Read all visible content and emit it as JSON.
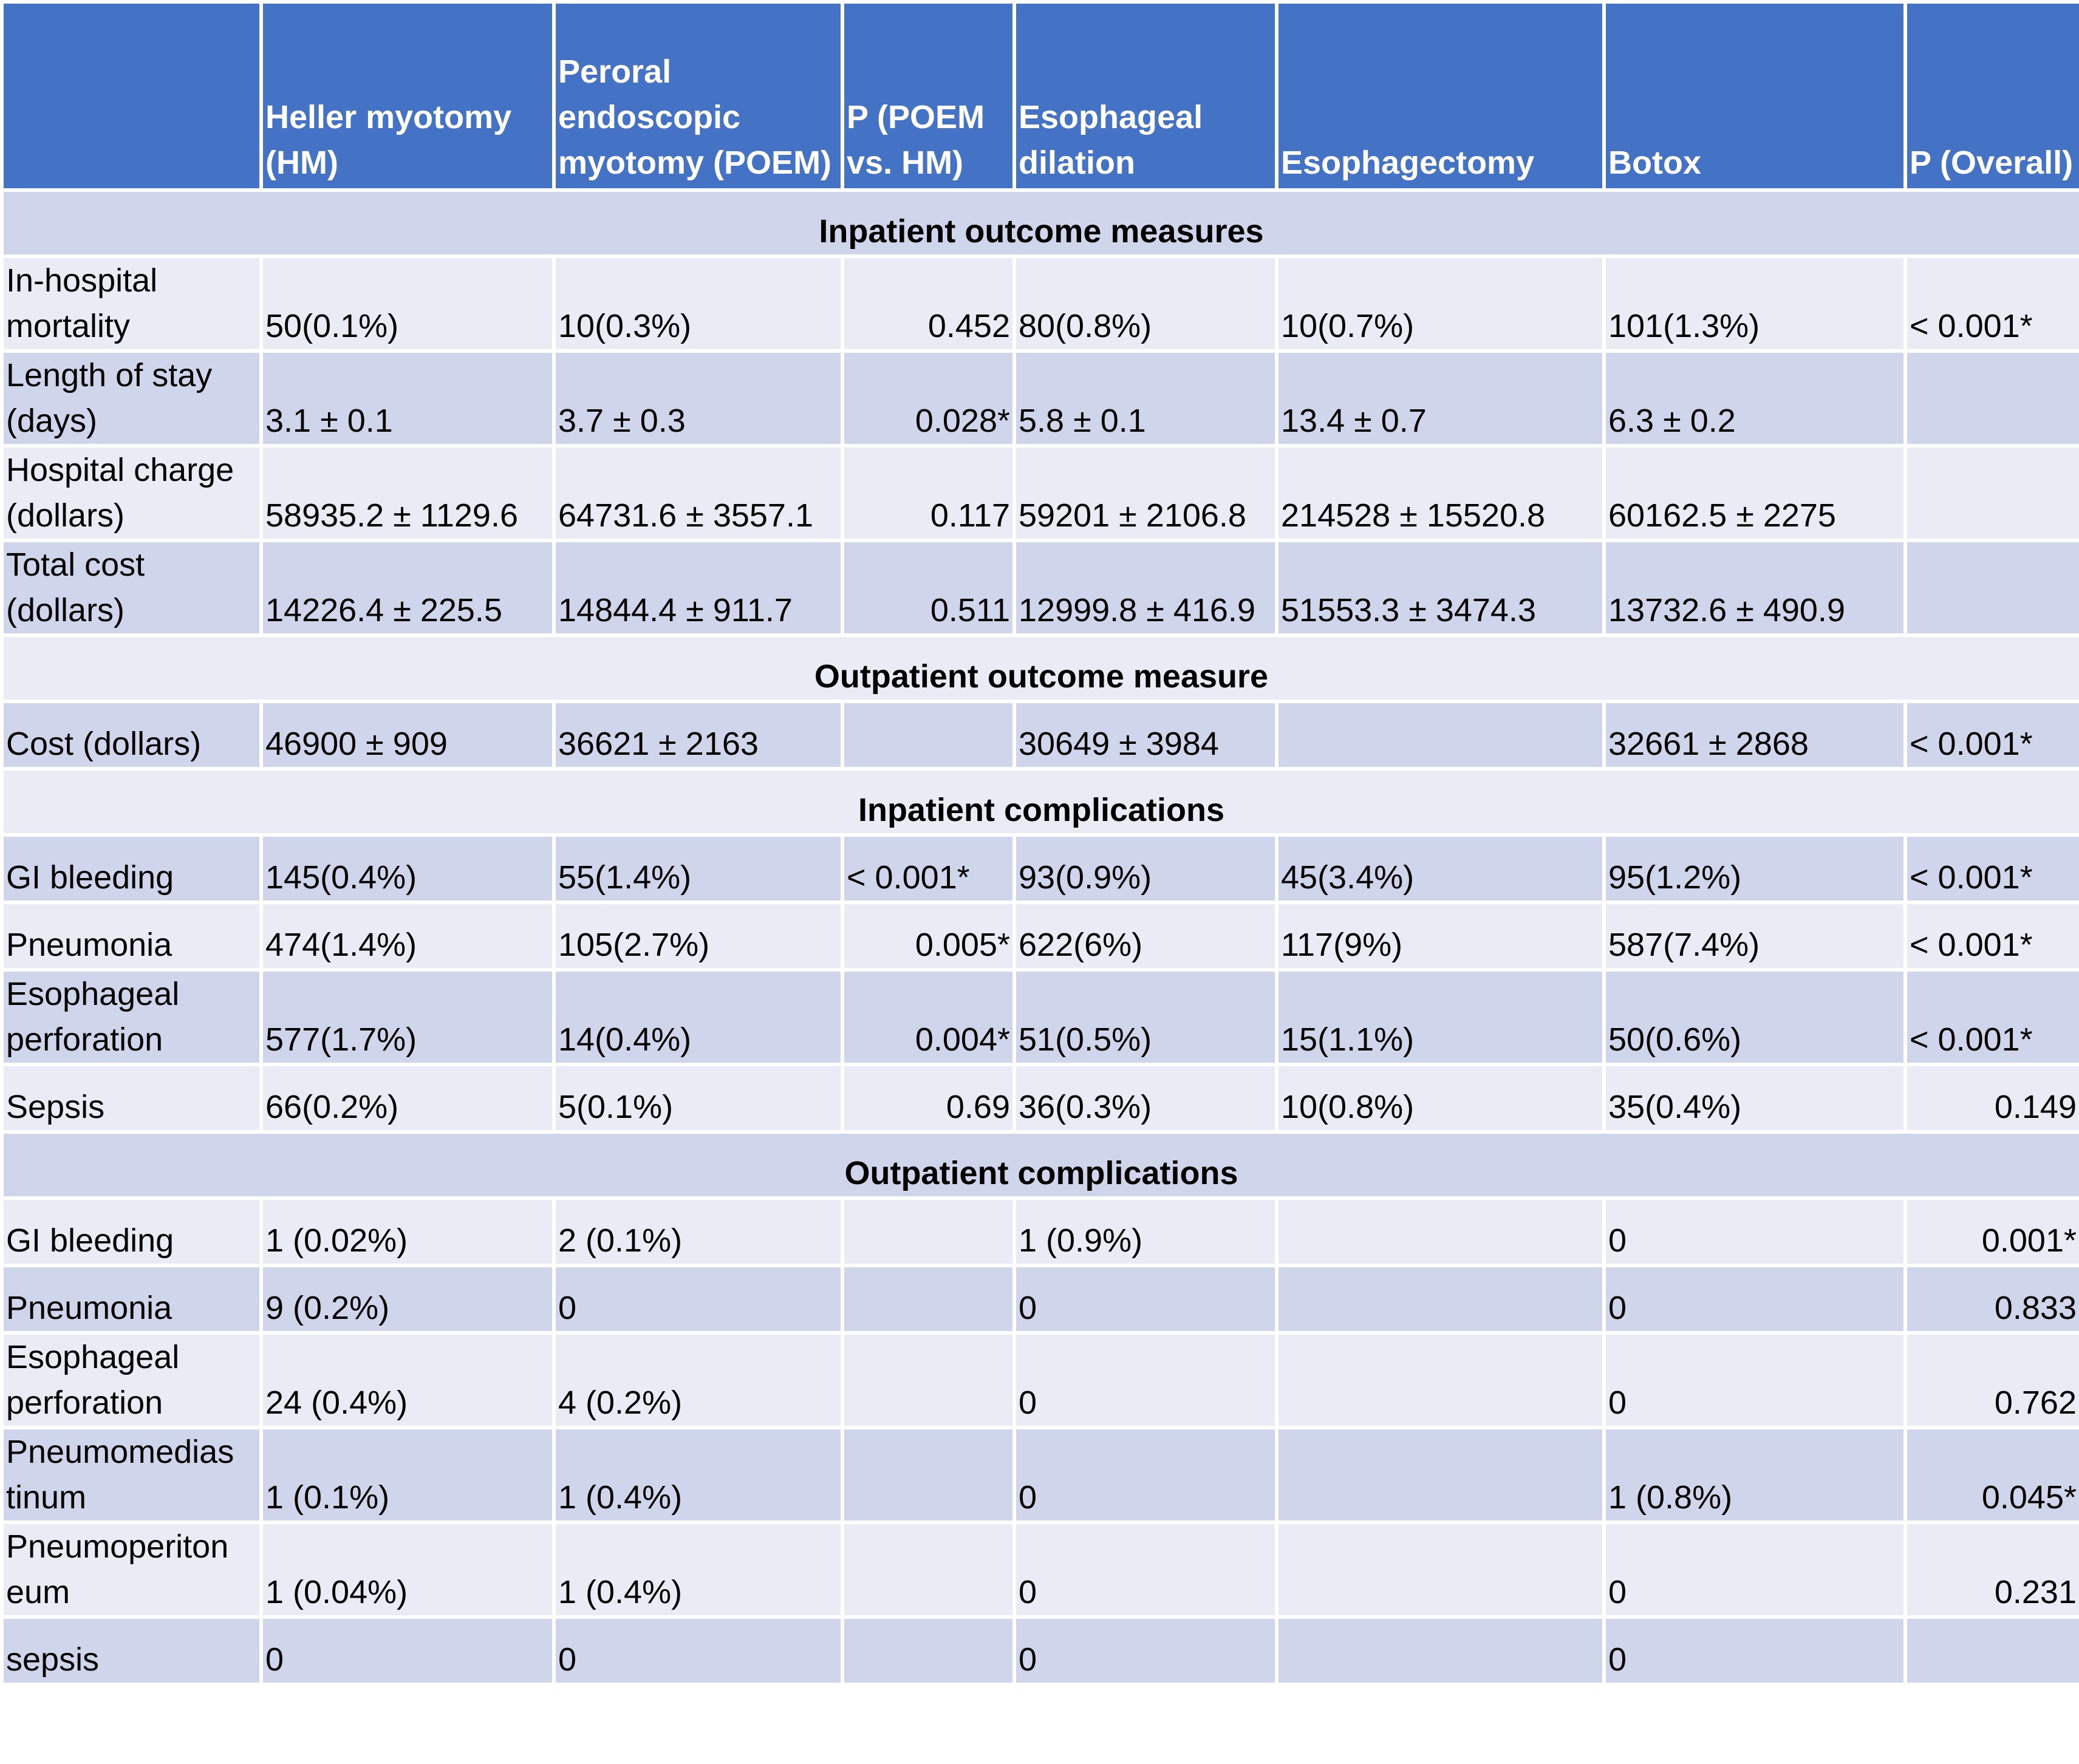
{
  "columns": [
    "",
    "Heller myotomy (HM)",
    "Peroral endoscopic myotomy (POEM)",
    "P (POEM vs. HM)",
    "Esophageal dilation",
    "Esophagectomy",
    "Botox",
    "P (Overall)"
  ],
  "sections": [
    {
      "title": "Inpatient outcome measures",
      "rows": [
        {
          "label": "In-hospital mortality",
          "cells": [
            "50(0.1%)",
            "10(0.3%)",
            "0.452",
            "80(0.8%)",
            "10(0.7%)",
            "101(1.3%)",
            "< 0.001*"
          ]
        },
        {
          "label": "Length of stay (days)",
          "cells": [
            "3.1 ± 0.1",
            "3.7 ± 0.3",
            "0.028*",
            "5.8 ± 0.1",
            "13.4 ± 0.7",
            "6.3 ± 0.2",
            ""
          ]
        },
        {
          "label": "Hospital charge (dollars)",
          "cells": [
            "58935.2 ± 1129.6",
            "64731.6 ± 3557.1",
            "0.117",
            "59201 ± 2106.8",
            "214528 ± 15520.8",
            "60162.5 ± 2275",
            ""
          ]
        },
        {
          "label": "Total cost (dollars)",
          "cells": [
            "14226.4 ± 225.5",
            "14844.4 ± 911.7",
            "0.511",
            "12999.8 ± 416.9",
            "51553.3 ± 3474.3",
            "13732.6 ± 490.9",
            ""
          ]
        }
      ]
    },
    {
      "title": "Outpatient outcome measure",
      "rows": [
        {
          "label": "Cost (dollars)",
          "cells": [
            "46900 ± 909",
            "36621 ± 2163",
            "",
            "30649 ± 3984",
            "",
            "32661 ± 2868",
            "< 0.001*"
          ]
        }
      ]
    },
    {
      "title": "Inpatient complications",
      "rows": [
        {
          "label": "GI bleeding",
          "cells": [
            "145(0.4%)",
            "55(1.4%)",
            "< 0.001*",
            "93(0.9%)",
            "45(3.4%)",
            "95(1.2%)",
            "< 0.001*"
          ]
        },
        {
          "label": "Pneumonia",
          "cells": [
            "474(1.4%)",
            "105(2.7%)",
            "0.005*",
            "622(6%)",
            "117(9%)",
            "587(7.4%)",
            "< 0.001*"
          ]
        },
        {
          "label": "Esophageal perforation",
          "cells": [
            "577(1.7%)",
            "14(0.4%)",
            "0.004*",
            "51(0.5%)",
            "15(1.1%)",
            "50(0.6%)",
            "< 0.001*"
          ]
        },
        {
          "label": "Sepsis",
          "cells": [
            "66(0.2%)",
            "5(0.1%)",
            "0.69",
            "36(0.3%)",
            "10(0.8%)",
            "35(0.4%)",
            "0.149"
          ]
        }
      ]
    },
    {
      "title": "Outpatient complications",
      "rows": [
        {
          "label": "GI bleeding",
          "cells": [
            "1 (0.02%)",
            "2 (0.1%)",
            "",
            "1 (0.9%)",
            "",
            "0",
            "0.001*"
          ]
        },
        {
          "label": "Pneumonia",
          "cells": [
            "9 (0.2%)",
            "0",
            "",
            "0",
            "",
            "0",
            "0.833"
          ]
        },
        {
          "label": "Esophageal perforation",
          "cells": [
            "24 (0.4%)",
            "4 (0.2%)",
            "",
            "0",
            "",
            "0",
            "0.762"
          ]
        },
        {
          "label": "Pneumomedias tinum",
          "cells": [
            "1 (0.1%)",
            "1 (0.4%)",
            "",
            "0",
            "",
            "1 (0.8%)",
            "0.045*"
          ]
        },
        {
          "label": "Pneumoperiton eum",
          "cells": [
            "1 (0.04%)",
            "1 (0.4%)",
            "",
            "0",
            "",
            "0",
            "0.231"
          ]
        },
        {
          "label": "sepsis",
          "cells": [
            "0",
            "0",
            "",
            "0",
            "",
            "0",
            ""
          ]
        }
      ]
    }
  ]
}
